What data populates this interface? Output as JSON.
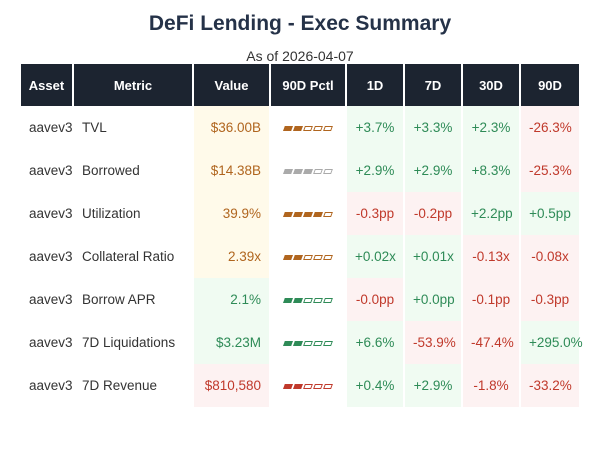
{
  "title": "DeFi Lending - Exec Summary",
  "subtitle": "As of 2026-04-07",
  "colors": {
    "header_bg": "#1c2430",
    "positive_text": "#2e8b57",
    "negative_text": "#c0392b",
    "positive_bg": "#f0fbf2",
    "negative_bg": "#fdf2f2",
    "neutral_text": "#b0651e",
    "neutral_bg": "#fffaea",
    "gray": "#aaaaaa"
  },
  "columns": [
    "Asset",
    "Metric",
    "Value",
    "90D Pctl",
    "1D",
    "7D",
    "30D",
    "90D"
  ],
  "rows": [
    {
      "asset": "aavev3",
      "metric": "TVL",
      "value": "$36.00B",
      "value_tone": "neutral",
      "pctl_filled": 2,
      "pctl_tone": "neutral",
      "changes": [
        "+3.7%",
        "+3.3%",
        "+2.3%",
        "-26.3%"
      ]
    },
    {
      "asset": "aavev3",
      "metric": "Borrowed",
      "value": "$14.38B",
      "value_tone": "neutral",
      "pctl_filled": 3,
      "pctl_tone": "gray",
      "changes": [
        "+2.9%",
        "+2.9%",
        "+8.3%",
        "-25.3%"
      ]
    },
    {
      "asset": "aavev3",
      "metric": "Utilization",
      "value": "39.9%",
      "value_tone": "neutral",
      "pctl_filled": 4,
      "pctl_tone": "neutral",
      "changes": [
        "-0.3pp",
        "-0.2pp",
        "+2.2pp",
        "+0.5pp"
      ]
    },
    {
      "asset": "aavev3",
      "metric": "Collateral Ratio",
      "value": "2.39x",
      "value_tone": "neutral",
      "pctl_filled": 2,
      "pctl_tone": "neutral",
      "changes": [
        "+0.02x",
        "+0.01x",
        "-0.13x",
        "-0.08x"
      ]
    },
    {
      "asset": "aavev3",
      "metric": "Borrow APR",
      "value": "2.1%",
      "value_tone": "positive",
      "pctl_filled": 2,
      "pctl_tone": "positive",
      "changes": [
        "-0.0pp",
        "+0.0pp",
        "-0.1pp",
        "-0.3pp"
      ]
    },
    {
      "asset": "aavev3",
      "metric": "7D Liquidations",
      "value": "$3.23M",
      "value_tone": "positive",
      "pctl_filled": 2,
      "pctl_tone": "positive",
      "changes": [
        "+6.6%",
        "-53.9%",
        "-47.4%",
        "+295.0%"
      ]
    },
    {
      "asset": "aavev3",
      "metric": "7D Revenue",
      "value": "$810,580",
      "value_tone": "negative",
      "pctl_filled": 2,
      "pctl_tone": "negative",
      "changes": [
        "+0.4%",
        "+2.9%",
        "-1.8%",
        "-33.2%"
      ]
    }
  ]
}
